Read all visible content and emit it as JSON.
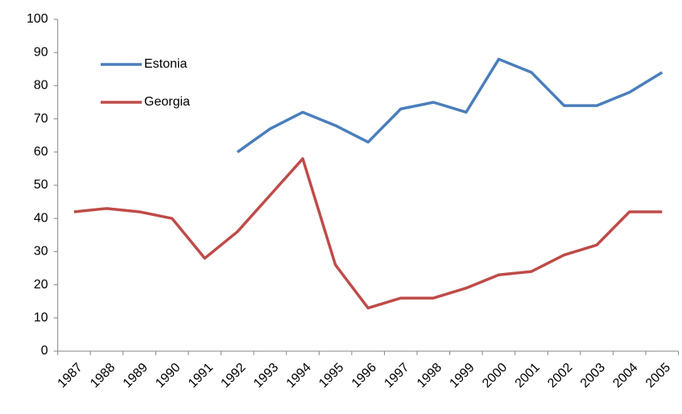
{
  "chart_data": {
    "type": "line",
    "categories": [
      "1987",
      "1988",
      "1989",
      "1990",
      "1991",
      "1992",
      "1993",
      "1994",
      "1995",
      "1996",
      "1997",
      "1998",
      "1999",
      "2000",
      "2001",
      "2002",
      "2003",
      "2004",
      "2005"
    ],
    "series": [
      {
        "name": "Estonia",
        "color": "#4a7ebb",
        "values": [
          null,
          null,
          null,
          null,
          null,
          60,
          67,
          72,
          68,
          63,
          73,
          75,
          72,
          88,
          84,
          74,
          74,
          78,
          84
        ]
      },
      {
        "name": "Georgia",
        "color": "#be4b48",
        "values": [
          42,
          43,
          42,
          40,
          28,
          36,
          47,
          58,
          26,
          13,
          16,
          16,
          19,
          23,
          24,
          29,
          32,
          42,
          42
        ]
      }
    ],
    "ylim": [
      0,
      100
    ],
    "yticks": [
      0,
      10,
      20,
      30,
      40,
      50,
      60,
      70,
      80,
      90,
      100
    ],
    "grid": false,
    "legend": "upper-left"
  }
}
